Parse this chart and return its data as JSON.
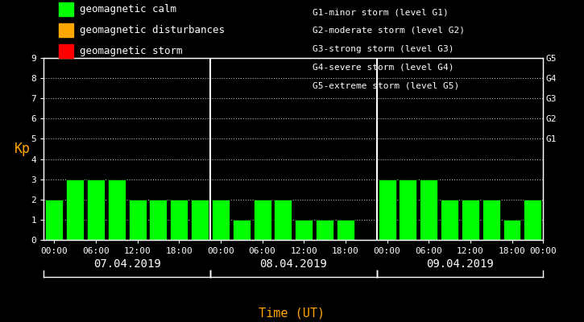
{
  "background_color": "#000000",
  "plot_bg_color": "#000000",
  "bar_color": "#00ff00",
  "bar_edge_color": "#000000",
  "grid_color": "#ffffff",
  "axis_color": "#ffffff",
  "tick_color": "#ffffff",
  "xlabel_color": "#ffa500",
  "kp_label_color": "#ffa500",
  "date_label_color": "#ffffff",
  "right_label_color": "#ffffff",
  "legend_text_color": "#ffffff",
  "legend_box_colors": [
    "#00ff00",
    "#ffa500",
    "#ff0000"
  ],
  "legend_labels": [
    "geomagnetic calm",
    "geomagnetic disturbances",
    "geomagnetic storm"
  ],
  "right_axis_labels": [
    "G1",
    "G2",
    "G3",
    "G4",
    "G5"
  ],
  "right_axis_positions": [
    5,
    6,
    7,
    8,
    9
  ],
  "storm_legend_lines": [
    "G1-minor storm (level G1)",
    "G2-moderate storm (level G2)",
    "G3-strong storm (level G3)",
    "G4-severe storm (level G4)",
    "G5-extreme storm (level G5)"
  ],
  "xlabel": "Time (UT)",
  "ylabel": "Kp",
  "ylim": [
    0,
    9
  ],
  "yticks": [
    0,
    1,
    2,
    3,
    4,
    5,
    6,
    7,
    8,
    9
  ],
  "days": [
    "07.04.2019",
    "08.04.2019",
    "09.04.2019"
  ],
  "kp_values_day1": [
    2,
    3,
    3,
    3,
    2,
    2,
    2,
    2
  ],
  "kp_values_day2": [
    2,
    1,
    2,
    2,
    1,
    1,
    1,
    0
  ],
  "kp_values_day3": [
    3,
    3,
    3,
    2,
    2,
    2,
    1,
    2
  ],
  "bar_width": 0.85,
  "font_family": "monospace",
  "font_size_ticks": 8,
  "font_size_labels": 10,
  "font_size_legend": 9,
  "font_size_right": 8,
  "font_size_dates": 10
}
